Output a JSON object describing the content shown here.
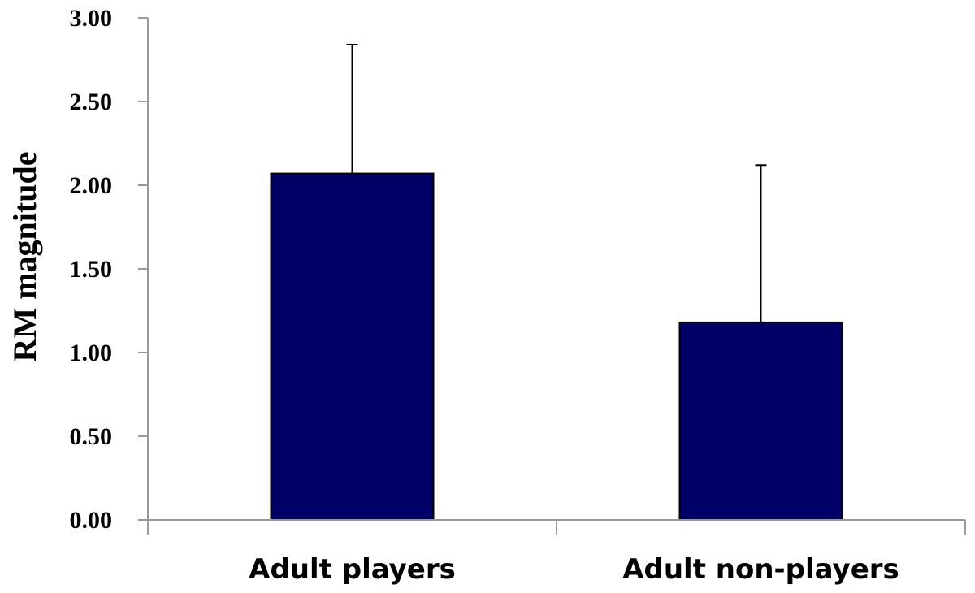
{
  "chart_data": {
    "type": "bar",
    "categories": [
      "Adult players",
      "Adult non-players"
    ],
    "values": [
      2.07,
      1.18
    ],
    "error_upper": [
      0.77,
      0.94
    ],
    "xlabel": "",
    "ylabel": "RM magnitude",
    "ylim": [
      0,
      3
    ],
    "yticks": [
      0,
      0.5,
      1,
      1.5,
      2,
      2.5,
      3
    ],
    "ytick_labels": [
      "0.00",
      "0.50",
      "1.00",
      "1.50",
      "2.00",
      "2.50",
      "3.00"
    ],
    "grid": false,
    "legend": "none",
    "colors": {
      "bar_fill": "#000066",
      "bar_stroke": "#000000",
      "axis": "#999999",
      "error_bar": "#000000"
    }
  }
}
